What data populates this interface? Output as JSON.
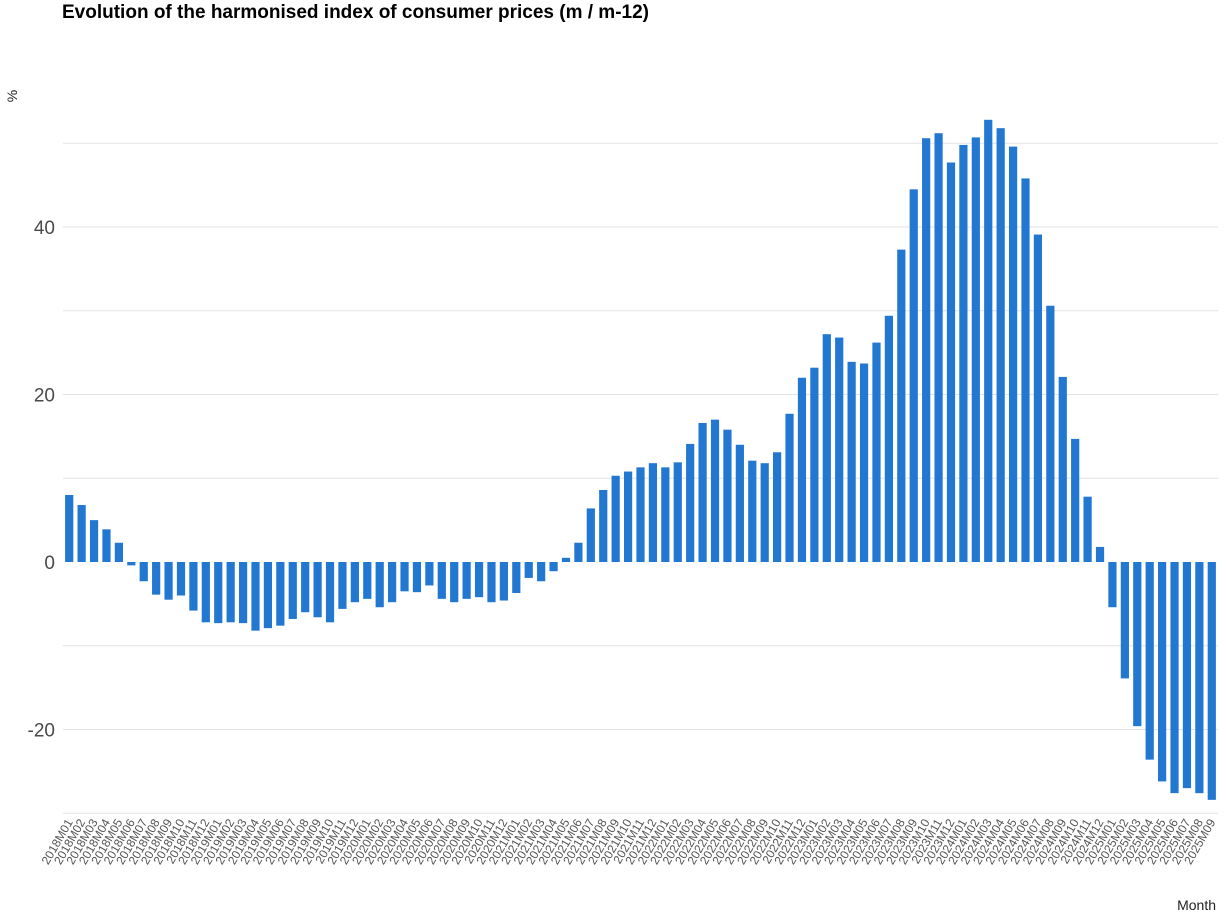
{
  "chart_data": {
    "type": "bar",
    "title": "Evolution of the harmonised index of consumer prices (m / m-12)",
    "ylabel": "%",
    "xlabel": "Month",
    "ylim": [
      -30,
      50
    ],
    "yticks": [
      -20,
      0,
      20,
      40
    ],
    "grid": true,
    "bar_color": "#2277d1",
    "categories": [
      "2018M01",
      "2018M02",
      "2018M03",
      "2018M04",
      "2018M05",
      "2018M06",
      "2018M07",
      "2018M08",
      "2018M09",
      "2018M10",
      "2018M11",
      "2018M12",
      "2019M01",
      "2019M02",
      "2019M03",
      "2019M04",
      "2019M05",
      "2019M06",
      "2019M07",
      "2019M08",
      "2019M09",
      "2019M10",
      "2019M11",
      "2019M12",
      "2020M01",
      "2020M02",
      "2020M03",
      "2020M04",
      "2020M05",
      "2020M06",
      "2020M07",
      "2020M08",
      "2020M09",
      "2020M10",
      "2020M11",
      "2020M12",
      "2021M01",
      "2021M02",
      "2021M03",
      "2021M04",
      "2021M05",
      "2021M06",
      "2021M07",
      "2021M08",
      "2021M09",
      "2021M10",
      "2021M11",
      "2021M12",
      "2022M01",
      "2022M02",
      "2022M03",
      "2022M04",
      "2022M05",
      "2022M06",
      "2022M07",
      "2022M08",
      "2022M09",
      "2022M10",
      "2022M11",
      "2022M12",
      "2023M01",
      "2023M02",
      "2023M03",
      "2023M04",
      "2023M05",
      "2023M06",
      "2023M07",
      "2023M08",
      "2023M09",
      "2023M10",
      "2023M11",
      "2023M12",
      "2024M01",
      "2024M02",
      "2024M03",
      "2024M04",
      "2024M05",
      "2024M06",
      "2024M07",
      "2024M08",
      "2024M09",
      "2024M10",
      "2024M11",
      "2024M12",
      "2025M01",
      "2025M02",
      "2025M03",
      "2025M04",
      "2025M05",
      "2025M06",
      "2025M07",
      "2025M08",
      "2025M09"
    ],
    "values": [
      8,
      6.8,
      5,
      3.9,
      2.3,
      -0.4,
      -2.3,
      -3.9,
      -4.5,
      -4,
      -5.8,
      -7.2,
      -7.3,
      -7.2,
      -7.3,
      -8.2,
      -7.9,
      -7.6,
      -6.8,
      -6,
      -6.6,
      -7.2,
      -5.6,
      -4.8,
      -4.4,
      -5.4,
      -4.8,
      -3.5,
      -3.6,
      -2.8,
      -4.4,
      -4.8,
      -4.4,
      -4.2,
      -4.8,
      -4.6,
      -3.7,
      -1.9,
      -2.3,
      -1.1,
      0.5,
      2.3,
      6.4,
      8.6,
      10.3,
      10.8,
      11.3,
      11.8,
      11.3,
      11.9,
      14.1,
      16.6,
      17,
      15.8,
      14,
      12.1,
      11.8,
      13.1,
      17.7,
      22,
      23.2,
      27.2,
      26.8,
      23.9,
      23.7,
      26.2,
      29.4,
      37.3,
      44.5,
      50.6,
      51.2,
      47.7,
      49.8,
      50.7,
      52.8,
      51.8,
      49.6,
      45.8,
      39.1,
      30.6,
      22.1,
      14.7,
      7.8,
      1.8,
      -5.4,
      -13.9,
      -19.6,
      -23.6,
      -26.2,
      -27.6,
      -27,
      -27.6,
      -28.4
    ]
  }
}
